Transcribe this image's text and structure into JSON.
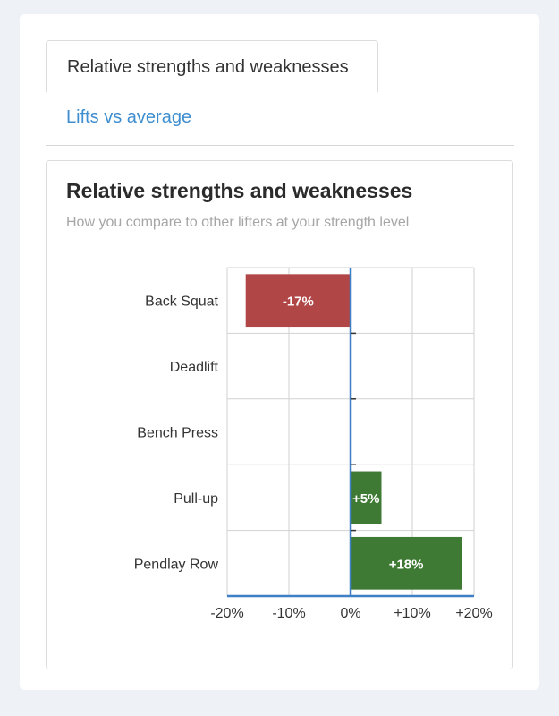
{
  "tabs": {
    "active_label": "Relative strengths and weaknesses",
    "link_label": "Lifts vs average"
  },
  "chart_card": {
    "title": "Relative strengths and weaknesses",
    "subtitle": "How you compare to other lifters at your strength level"
  },
  "colors": {
    "negative": "#b04646",
    "positive": "#3f7a34",
    "axis": "#3f7fc4",
    "grid": "#d2d2d2",
    "link": "#3e8ed0"
  },
  "chart_data": {
    "type": "bar",
    "orientation": "horizontal",
    "categories": [
      "Back Squat",
      "Deadlift",
      "Bench Press",
      "Pull-up",
      "Pendlay Row"
    ],
    "values": [
      -17,
      null,
      null,
      5,
      18
    ],
    "value_labels": [
      "-17%",
      "",
      "",
      "+5%",
      "+18%"
    ],
    "xlim": [
      -20,
      20
    ],
    "xticks": [
      -20,
      -10,
      0,
      10,
      20
    ],
    "xtick_labels": [
      "-20%",
      "-10%",
      "0%",
      "+10%",
      "+20%"
    ],
    "grid": true,
    "legend": "none"
  }
}
